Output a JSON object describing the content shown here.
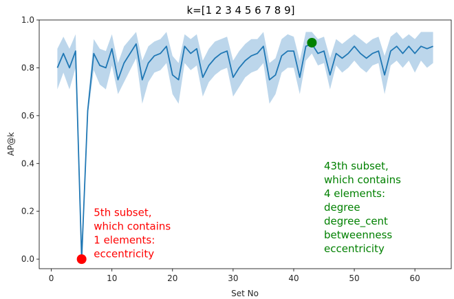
{
  "chart_data": {
    "type": "line",
    "title": "k=[1 2 3 4 5 6 7 8 9]",
    "xlabel": "Set No",
    "ylabel": "AP@k",
    "xlim": [
      -2,
      66
    ],
    "ylim": [
      -0.04,
      1.0
    ],
    "xticks": [
      0,
      10,
      20,
      30,
      40,
      50,
      60
    ],
    "yticks": [
      0.0,
      0.2,
      0.4,
      0.6,
      0.8,
      1.0
    ],
    "xtick_labels": [
      "0",
      "10",
      "20",
      "30",
      "40",
      "50",
      "60"
    ],
    "ytick_labels": [
      "0.0",
      "0.2",
      "0.4",
      "0.6",
      "0.8",
      "1.0"
    ],
    "grid": false,
    "colors": {
      "line": "#1f77b4",
      "band": "#a6c8e4",
      "min_marker": "#ff0000",
      "max_marker": "#008000"
    },
    "series": [
      {
        "x": [
          1,
          2,
          3,
          4,
          5,
          6,
          7,
          8,
          9,
          10,
          11,
          12,
          13,
          14,
          15,
          16,
          17,
          18,
          19,
          20,
          21,
          22,
          23,
          24,
          25,
          26,
          27,
          28,
          29,
          30,
          31,
          32,
          33,
          34,
          35,
          36,
          37,
          38,
          39,
          40,
          41,
          42,
          43,
          44,
          45,
          46,
          47,
          48,
          49,
          50,
          51,
          52,
          53,
          54,
          55,
          56,
          57,
          58,
          59,
          60,
          61,
          62,
          63
        ],
        "mean": [
          0.8,
          0.86,
          0.8,
          0.87,
          0.0,
          0.62,
          0.86,
          0.81,
          0.8,
          0.88,
          0.75,
          0.82,
          0.86,
          0.9,
          0.75,
          0.82,
          0.85,
          0.86,
          0.89,
          0.77,
          0.75,
          0.89,
          0.86,
          0.88,
          0.76,
          0.81,
          0.84,
          0.86,
          0.87,
          0.76,
          0.8,
          0.83,
          0.85,
          0.86,
          0.89,
          0.75,
          0.77,
          0.85,
          0.87,
          0.87,
          0.76,
          0.89,
          0.9,
          0.86,
          0.87,
          0.77,
          0.86,
          0.84,
          0.86,
          0.89,
          0.86,
          0.84,
          0.86,
          0.87,
          0.77,
          0.87,
          0.89,
          0.86,
          0.89,
          0.86,
          0.89,
          0.88,
          0.89
        ],
        "lower": [
          0.71,
          0.78,
          0.71,
          0.8,
          0.0,
          0.6,
          0.79,
          0.73,
          0.71,
          0.81,
          0.69,
          0.74,
          0.79,
          0.84,
          0.65,
          0.74,
          0.78,
          0.79,
          0.82,
          0.69,
          0.65,
          0.82,
          0.79,
          0.81,
          0.68,
          0.74,
          0.77,
          0.79,
          0.8,
          0.68,
          0.72,
          0.76,
          0.78,
          0.79,
          0.82,
          0.65,
          0.69,
          0.78,
          0.8,
          0.8,
          0.69,
          0.83,
          0.86,
          0.81,
          0.82,
          0.71,
          0.81,
          0.78,
          0.8,
          0.83,
          0.8,
          0.78,
          0.81,
          0.82,
          0.69,
          0.81,
          0.83,
          0.8,
          0.83,
          0.78,
          0.83,
          0.8,
          0.82
        ],
        "upper": [
          0.88,
          0.93,
          0.88,
          0.94,
          0.0,
          0.65,
          0.92,
          0.88,
          0.87,
          0.94,
          0.82,
          0.89,
          0.92,
          0.95,
          0.83,
          0.89,
          0.91,
          0.92,
          0.95,
          0.85,
          0.82,
          0.94,
          0.92,
          0.94,
          0.83,
          0.88,
          0.91,
          0.92,
          0.93,
          0.83,
          0.87,
          0.9,
          0.92,
          0.92,
          0.95,
          0.82,
          0.84,
          0.92,
          0.94,
          0.93,
          0.83,
          0.95,
          0.95,
          0.92,
          0.93,
          0.84,
          0.92,
          0.9,
          0.92,
          0.94,
          0.92,
          0.9,
          0.92,
          0.93,
          0.85,
          0.93,
          0.95,
          0.92,
          0.94,
          0.92,
          0.95,
          0.95,
          0.95
        ]
      }
    ],
    "markers": [
      {
        "x": 5,
        "y": 0.0,
        "color": "#ff0000"
      },
      {
        "x": 43,
        "y": 0.905,
        "color": "#008000"
      }
    ],
    "annotations": [
      {
        "x": 7,
        "y": 0.18,
        "color": "#ff0000",
        "lines": [
          "5th subset,",
          "which contains",
          "1 elements:",
          "eccentricity"
        ]
      },
      {
        "x": 45,
        "y": 0.375,
        "color": "#008000",
        "lines": [
          "43th subset,",
          "which contains",
          "4 elements:",
          "degree",
          "degree_cent",
          "betweenness",
          "eccentricity"
        ]
      }
    ]
  }
}
